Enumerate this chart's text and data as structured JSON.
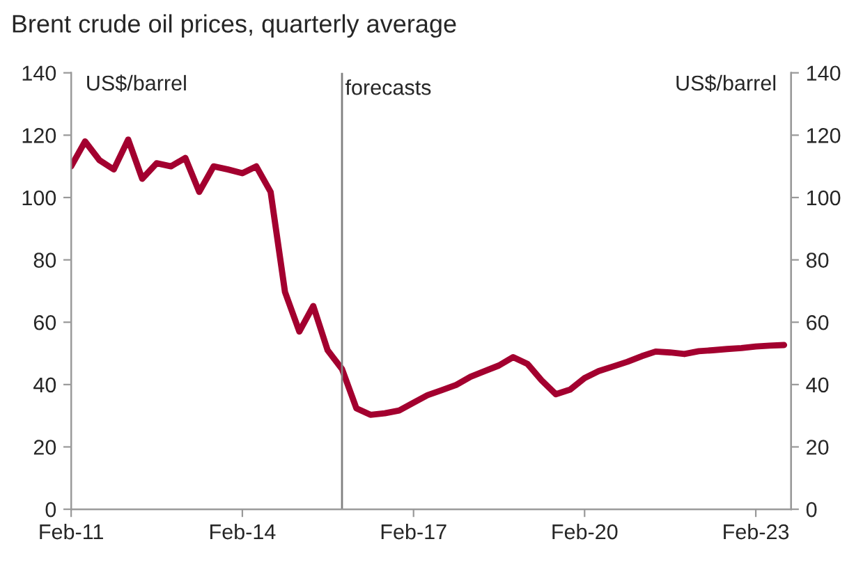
{
  "chart_data": {
    "type": "line",
    "title": "Brent crude oil prices, quarterly average",
    "ylabel": "US$/barrel",
    "y2label": "US$/barrel",
    "x": [
      "2011-02",
      "2011-05",
      "2011-08",
      "2011-11",
      "2012-02",
      "2012-05",
      "2012-08",
      "2012-11",
      "2013-02",
      "2013-05",
      "2013-08",
      "2013-11",
      "2014-02",
      "2014-05",
      "2014-08",
      "2014-11",
      "2015-02",
      "2015-05",
      "2015-08",
      "2015-11",
      "2016-02",
      "2016-05",
      "2016-08",
      "2016-11",
      "2017-02",
      "2017-05",
      "2017-08",
      "2017-11",
      "2018-02",
      "2018-05",
      "2018-08",
      "2018-11",
      "2019-02",
      "2019-05",
      "2019-08",
      "2019-11",
      "2020-02",
      "2020-05",
      "2020-08",
      "2020-11",
      "2021-02",
      "2021-05",
      "2021-08",
      "2021-11",
      "2022-02",
      "2022-05",
      "2022-08",
      "2022-11",
      "2023-02",
      "2023-05",
      "2023-08"
    ],
    "series": [
      {
        "color": "#a3002f",
        "values": [
          110,
          118,
          112,
          109,
          118.6,
          106,
          111,
          110,
          112.7,
          101.8,
          110,
          109,
          107.8,
          110,
          101.8,
          69.7,
          57,
          65.2,
          51,
          45,
          32.4,
          30.3,
          30.8,
          31.7,
          34.2,
          36.6,
          38.2,
          39.9,
          42.5,
          44.3,
          46.1,
          48.8,
          46.6,
          41.4,
          36.9,
          38.4,
          42.1,
          44.3,
          45.8,
          47.3,
          49.1,
          50.6,
          50.3,
          49.8,
          50.7,
          51,
          51.4,
          51.7,
          52.2,
          52.5,
          52.7
        ]
      }
    ],
    "xlim": [
      "2011-02",
      "2023-09-15"
    ],
    "xticks": [
      {
        "value": "2011-02",
        "label": "Feb-11"
      },
      {
        "value": "2014-02",
        "label": "Feb-14"
      },
      {
        "value": "2017-02",
        "label": "Feb-17"
      },
      {
        "value": "2020-02",
        "label": "Feb-20"
      },
      {
        "value": "2023-02",
        "label": "Feb-23"
      }
    ],
    "ylim": [
      0,
      140
    ],
    "yticks": [
      0,
      20,
      40,
      60,
      80,
      100,
      120,
      140
    ],
    "y2lim": [
      0,
      140
    ],
    "y2ticks": [
      0,
      20,
      40,
      60,
      80,
      100,
      120,
      140
    ],
    "ref_lines": [
      {
        "axis": "x",
        "value": "2015-11",
        "label": "forecasts",
        "color": "#808080"
      }
    ],
    "grid": false,
    "legend": false,
    "marker": "none",
    "line_style": "solid"
  }
}
